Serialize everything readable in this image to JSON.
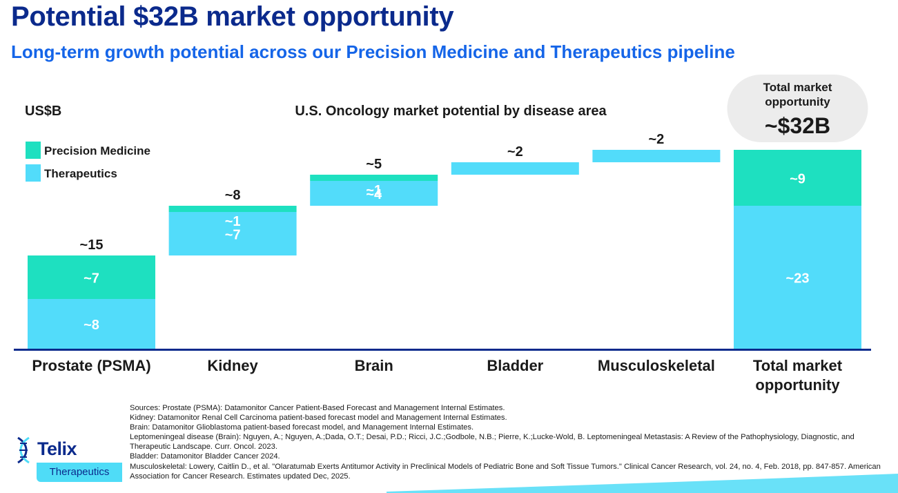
{
  "header": {
    "title": "Potential $32B market opportunity",
    "subtitle": "Long-term growth potential across our Precision Medicine and Therapeutics pipeline"
  },
  "colors": {
    "precision_medicine": "#1ee0c0",
    "therapeutics": "#52dcfa",
    "axis": "#0b2a8c",
    "bubble": "#ececec"
  },
  "chart_data": {
    "type": "bar",
    "subtype": "waterfall",
    "title": "U.S. Oncology market potential by disease area",
    "ylabel": "US$B",
    "ylim": [
      0,
      32
    ],
    "categories": [
      "Prostate (PSMA)",
      "Kidney",
      "Brain",
      "Bladder",
      "Musculoskeletal",
      "Total market opportunity"
    ],
    "series": [
      {
        "name": "Precision Medicine",
        "values": [
          7,
          1,
          1,
          0,
          0,
          9
        ],
        "labels": [
          "~7",
          "~1",
          "~1",
          "",
          "",
          "~9"
        ]
      },
      {
        "name": "Therapeutics",
        "values": [
          8,
          7,
          4,
          2,
          2,
          23
        ],
        "labels": [
          "~8",
          "~7",
          "~4",
          "",
          "",
          "~23"
        ]
      }
    ],
    "totals": [
      15,
      8,
      5,
      2,
      2,
      32
    ],
    "total_labels": [
      "~15",
      "~8",
      "~5",
      "~2",
      "~2",
      ""
    ],
    "legend": [
      "Precision Medicine",
      "Therapeutics"
    ],
    "legend_position": "top-left",
    "callout": {
      "label": "Total market opportunity",
      "value": "~$32B"
    }
  },
  "footnotes": [
    "Sources: Prostate (PSMA): Datamonitor Cancer Patient-Based Forecast and Management Internal Estimates.",
    "Kidney: Datamonitor  Renal Cell Carcinoma patient-based forecast model and Management Internal Estimates.",
    "Brain: Datamonitor Glioblastoma patient-based forecast model, and Management Internal Estimates.",
    "Leptomeningeal disease (Brain): Nguyen, A.; Nguyen, A.;Dada, O.T.; Desai, P.D.; Ricci, J.C.;Godbole, N.B.; Pierre, K.;Lucke-Wold, B. Leptomeningeal Metastasis: A Review of the Pathophysiology, Diagnostic, and Therapeutic Landscape. Curr. Oncol. 2023.",
    "Bladder: Datamonitor Bladder Cancer 2024.",
    "Musculoskeletal: Lowery, Caitlin D., et al. \"Olaratumab Exerts Antitumor Activity in Preclinical Models of Pediatric Bone and Soft Tissue Tumors.\" Clinical Cancer Research, vol. 24, no. 4, Feb. 2018, pp. 847-857. American Association for Cancer Research. Estimates updated Dec, 2025."
  ],
  "logo": {
    "name": "Telix",
    "tagline": "Therapeutics"
  }
}
